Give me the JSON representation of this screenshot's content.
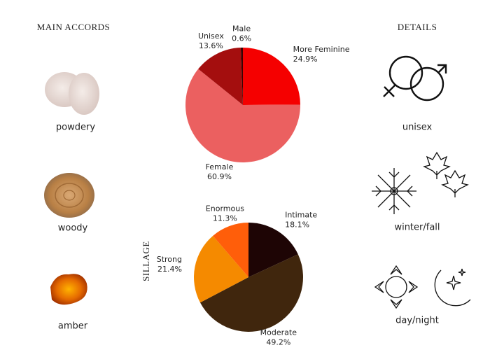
{
  "main_accords": {
    "title": "MAIN ACCORDS",
    "items": [
      "powdery",
      "woody",
      "amber"
    ]
  },
  "details": {
    "title": "DETAILS",
    "items": [
      "unisex",
      "winter/fall",
      "day/night"
    ]
  },
  "chart_data": [
    {
      "type": "pie",
      "categories": [
        "More Feminine",
        "Female",
        "Unisex",
        "Male"
      ],
      "values": [
        24.9,
        60.9,
        13.6,
        0.6
      ],
      "value_labels": [
        "24.9%",
        "60.9%",
        "13.6%",
        "0.6%"
      ],
      "colors": [
        "#f50000",
        "#eb6060",
        "#a40e0e",
        "#3a0000"
      ]
    },
    {
      "type": "pie",
      "title": "SILLAGE",
      "categories": [
        "Intimate",
        "Moderate",
        "Strong",
        "Enormous"
      ],
      "values": [
        18.1,
        49.2,
        21.4,
        11.3
      ],
      "value_labels": [
        "18.1%",
        "49.2%",
        "21.4%",
        "11.3%"
      ],
      "colors": [
        "#1e0505",
        "#40260d",
        "#f58a00",
        "#ff5e0a"
      ]
    }
  ]
}
